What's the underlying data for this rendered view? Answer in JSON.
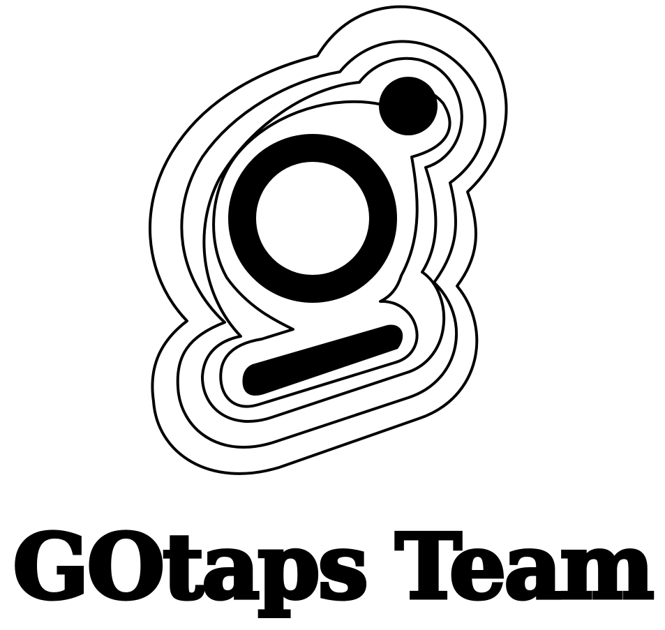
{
  "brand": {
    "name": "GOtaps Team",
    "logo_icon": "stylized-g-icon",
    "colors": {
      "ink": "#000000",
      "background": "#ffffff"
    }
  }
}
